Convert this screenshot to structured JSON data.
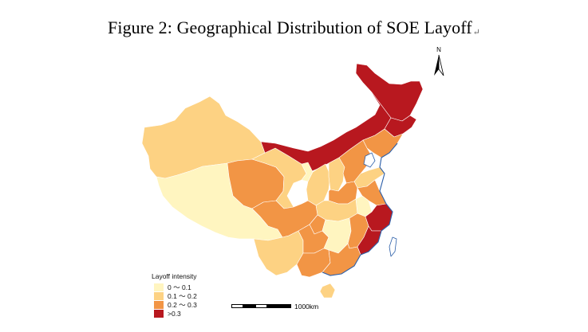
{
  "figure": {
    "title": "Figure 2: Geographical Distribution of SOE Layoff",
    "paragraph_mark": "↵"
  },
  "map": {
    "north_label": "N",
    "scale_label": "1000km",
    "legend": {
      "title": "Layoff intensity",
      "items": [
        {
          "label": "0 ～ 0.1",
          "color": "#fff5c0"
        },
        {
          "label": "0.1 ～ 0.2",
          "color": "#fdd283"
        },
        {
          "label": "0.2 ～ 0.3",
          "color": "#f29545"
        },
        {
          "label": ">0.3",
          "color": "#b8181f"
        }
      ]
    },
    "colors": {
      "low": "#fff5c0",
      "mid_low": "#fdd283",
      "mid_high": "#f29545",
      "high": "#b8181f",
      "border": "#cdb7a0",
      "coast": "#2b5ea8"
    }
  }
}
